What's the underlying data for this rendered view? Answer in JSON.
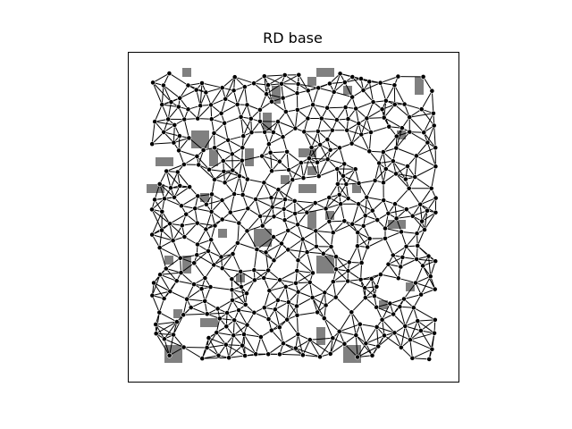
{
  "figure": {
    "title": "RD base"
  },
  "colors": {
    "background": "#ffffff",
    "frame": "#000000",
    "obstacle": "#808080",
    "edge": "#000000",
    "node_fill": "#000000",
    "node_ring": "#ffffff"
  },
  "diagram": {
    "type": "random-graph-on-grid-with-obstacles",
    "seed": 7,
    "approx_node_count": 430,
    "obstacle_fraction": 0.06
  }
}
